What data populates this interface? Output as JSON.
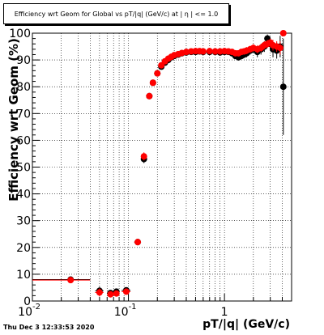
{
  "window": {
    "title": "Efficiency wrt Geom for Global vs pT/|q| (GeV/c) at | η | <= 1.0",
    "timestamp": "Thu Dec  3 12:33:53 2020"
  },
  "chart_data": {
    "type": "scatter",
    "title": "Efficiency wrt Geom for Global vs pT/|q| (GeV/c) at | η | <= 1.0",
    "xlabel": "pT/|q| (GeV/c)",
    "ylabel": "Efficiency wrt Geom (%)",
    "x_scale": "log",
    "xlim": [
      0.01,
      5
    ],
    "ylim": [
      0,
      100
    ],
    "grid": true,
    "x_tick_labels": [
      {
        "value": 0.01,
        "label": "10",
        "exp": "-2"
      },
      {
        "value": 0.1,
        "label": "10",
        "exp": "-1"
      },
      {
        "value": 1,
        "label": "1",
        "exp": ""
      }
    ],
    "y_ticks": [
      0,
      10,
      20,
      30,
      40,
      50,
      60,
      70,
      80,
      90,
      100
    ],
    "series": [
      {
        "color": "#000000",
        "points": [
          {
            "x": 0.025,
            "y": 8.0,
            "xlo": 0.01,
            "xhi": 0.04,
            "ey": 0.8
          },
          {
            "x": 0.05,
            "y": 3.8,
            "xlo": 0.045,
            "xhi": 0.055,
            "ey": 1.5
          },
          {
            "x": 0.065,
            "y": 3.0,
            "xlo": 0.06,
            "xhi": 0.07,
            "ey": 1.0
          },
          {
            "x": 0.075,
            "y": 3.5,
            "xlo": 0.07,
            "xhi": 0.08,
            "ey": 1.0
          },
          {
            "x": 0.095,
            "y": 4.0,
            "xlo": 0.085,
            "xhi": 0.105,
            "ey": 1.0
          },
          {
            "x": 0.125,
            "y": 22.0,
            "xlo": 0.115,
            "xhi": 0.135,
            "ey": 1.2
          },
          {
            "x": 0.145,
            "y": 53.0,
            "xlo": 0.14,
            "xhi": 0.15,
            "ey": 1.5
          },
          {
            "x": 0.165,
            "y": 76.5,
            "ey": 1.0
          },
          {
            "x": 0.18,
            "y": 81.5,
            "ey": 0.8
          },
          {
            "x": 0.2,
            "y": 85.0,
            "ey": 0.6
          },
          {
            "x": 0.22,
            "y": 87.5,
            "ey": 0.5
          },
          {
            "x": 0.24,
            "y": 89.0,
            "ey": 0.5
          },
          {
            "x": 0.26,
            "y": 90.0,
            "ey": 0.4
          },
          {
            "x": 0.28,
            "y": 91.0,
            "ey": 0.4
          },
          {
            "x": 0.3,
            "y": 91.5,
            "ey": 0.4
          },
          {
            "x": 0.33,
            "y": 92.0,
            "ey": 0.4
          },
          {
            "x": 0.36,
            "y": 92.5,
            "ey": 0.4
          },
          {
            "x": 0.4,
            "y": 92.8,
            "ey": 0.4
          },
          {
            "x": 0.45,
            "y": 93.0,
            "ey": 0.4
          },
          {
            "x": 0.5,
            "y": 93.0,
            "ey": 0.4
          },
          {
            "x": 0.55,
            "y": 93.2,
            "ey": 0.4
          },
          {
            "x": 0.6,
            "y": 93.0,
            "ey": 0.4
          },
          {
            "x": 0.7,
            "y": 93.0,
            "ey": 0.4
          },
          {
            "x": 0.8,
            "y": 93.0,
            "ey": 0.5
          },
          {
            "x": 0.9,
            "y": 92.8,
            "ey": 0.5
          },
          {
            "x": 1.0,
            "y": 93.0,
            "ey": 0.5
          },
          {
            "x": 1.1,
            "y": 93.0,
            "ey": 0.6
          },
          {
            "x": 1.2,
            "y": 92.5,
            "ey": 0.7
          },
          {
            "x": 1.3,
            "y": 91.5,
            "ey": 1.0
          },
          {
            "x": 1.4,
            "y": 91.0,
            "ey": 1.2
          },
          {
            "x": 1.5,
            "y": 91.5,
            "ey": 1.2
          },
          {
            "x": 1.6,
            "y": 92.0,
            "ey": 1.3
          },
          {
            "x": 1.7,
            "y": 92.5,
            "ey": 1.5
          },
          {
            "x": 1.85,
            "y": 93.5,
            "ey": 1.5
          },
          {
            "x": 2.0,
            "y": 94.0,
            "ey": 1.5
          },
          {
            "x": 2.2,
            "y": 93.0,
            "ey": 2.0
          },
          {
            "x": 2.4,
            "y": 94.0,
            "ey": 2.0
          },
          {
            "x": 2.6,
            "y": 95.0,
            "ey": 2.0
          },
          {
            "x": 2.8,
            "y": 98.0,
            "ey": 1.5
          },
          {
            "x": 3.0,
            "y": 96.0,
            "ey": 2.0
          },
          {
            "x": 3.2,
            "y": 94.0,
            "ey": 3.0
          },
          {
            "x": 3.5,
            "y": 93.5,
            "ey": 3.0
          },
          {
            "x": 3.8,
            "y": 95.0,
            "ey": 4.0
          },
          {
            "x": 4.1,
            "y": 80.0,
            "ey": 18.0
          }
        ]
      },
      {
        "color": "#ff0000",
        "points": [
          {
            "x": 0.025,
            "y": 7.8,
            "xlo": 0.01,
            "xhi": 0.04,
            "ey": 0.8
          },
          {
            "x": 0.05,
            "y": 3.2,
            "xlo": 0.045,
            "xhi": 0.055,
            "ey": 1.5
          },
          {
            "x": 0.065,
            "y": 2.5,
            "xlo": 0.06,
            "xhi": 0.07,
            "ey": 1.0
          },
          {
            "x": 0.075,
            "y": 2.8,
            "xlo": 0.07,
            "xhi": 0.08,
            "ey": 1.0
          },
          {
            "x": 0.095,
            "y": 3.5,
            "xlo": 0.085,
            "xhi": 0.105,
            "ey": 1.0
          },
          {
            "x": 0.125,
            "y": 22.0,
            "xlo": 0.115,
            "xhi": 0.135,
            "ey": 1.2
          },
          {
            "x": 0.145,
            "y": 54.0,
            "xlo": 0.14,
            "xhi": 0.15,
            "ey": 1.5
          },
          {
            "x": 0.165,
            "y": 76.5,
            "ey": 1.0
          },
          {
            "x": 0.18,
            "y": 81.5,
            "ey": 0.8
          },
          {
            "x": 0.2,
            "y": 85.0,
            "ey": 0.6
          },
          {
            "x": 0.22,
            "y": 88.0,
            "ey": 0.5
          },
          {
            "x": 0.24,
            "y": 89.5,
            "ey": 0.5
          },
          {
            "x": 0.26,
            "y": 90.5,
            "ey": 0.4
          },
          {
            "x": 0.28,
            "y": 91.2,
            "ey": 0.4
          },
          {
            "x": 0.3,
            "y": 91.8,
            "ey": 0.4
          },
          {
            "x": 0.33,
            "y": 92.2,
            "ey": 0.4
          },
          {
            "x": 0.36,
            "y": 92.6,
            "ey": 0.4
          },
          {
            "x": 0.4,
            "y": 93.0,
            "ey": 0.4
          },
          {
            "x": 0.45,
            "y": 93.2,
            "ey": 0.4
          },
          {
            "x": 0.5,
            "y": 93.3,
            "ey": 0.4
          },
          {
            "x": 0.55,
            "y": 93.3,
            "ey": 0.4
          },
          {
            "x": 0.6,
            "y": 93.2,
            "ey": 0.4
          },
          {
            "x": 0.7,
            "y": 93.3,
            "ey": 0.4
          },
          {
            "x": 0.8,
            "y": 93.2,
            "ey": 0.5
          },
          {
            "x": 0.9,
            "y": 93.2,
            "ey": 0.5
          },
          {
            "x": 1.0,
            "y": 93.3,
            "ey": 0.5
          },
          {
            "x": 1.1,
            "y": 93.2,
            "ey": 0.6
          },
          {
            "x": 1.2,
            "y": 93.0,
            "ey": 0.7
          },
          {
            "x": 1.3,
            "y": 92.5,
            "ey": 1.0
          },
          {
            "x": 1.4,
            "y": 92.5,
            "ey": 1.0
          },
          {
            "x": 1.5,
            "y": 93.0,
            "ey": 1.0
          },
          {
            "x": 1.6,
            "y": 93.2,
            "ey": 1.2
          },
          {
            "x": 1.7,
            "y": 93.5,
            "ey": 1.3
          },
          {
            "x": 1.85,
            "y": 94.0,
            "ey": 1.3
          },
          {
            "x": 2.0,
            "y": 94.5,
            "ey": 1.4
          },
          {
            "x": 2.2,
            "y": 94.0,
            "ey": 1.5
          },
          {
            "x": 2.4,
            "y": 94.5,
            "ey": 1.5
          },
          {
            "x": 2.6,
            "y": 95.5,
            "ey": 1.5
          },
          {
            "x": 2.8,
            "y": 96.0,
            "ey": 1.5
          },
          {
            "x": 3.0,
            "y": 96.5,
            "ey": 1.5
          },
          {
            "x": 3.2,
            "y": 95.5,
            "ey": 2.0
          },
          {
            "x": 3.5,
            "y": 95.0,
            "ey": 2.0
          },
          {
            "x": 3.8,
            "y": 94.5,
            "ey": 2.5
          },
          {
            "x": 4.1,
            "y": 100.0,
            "ey": 0.5
          }
        ]
      }
    ]
  }
}
